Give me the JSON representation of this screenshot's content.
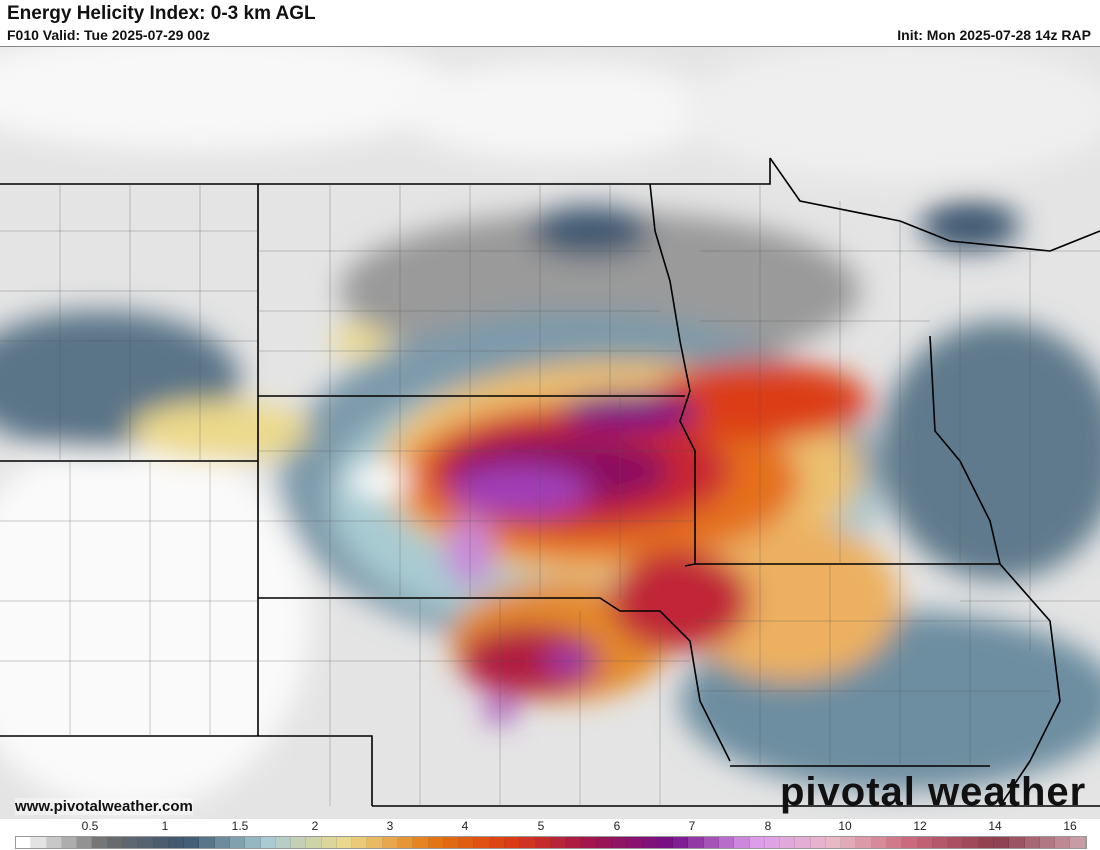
{
  "header": {
    "title": "Energy Helicity Index: 0-3 km AGL",
    "valid": "F010 Valid: Tue 2025-07-29 00z",
    "init": "Init: Mon 2025-07-28 14z RAP"
  },
  "watermark": {
    "url": "www.pivotalweather.com",
    "logo": "pivotal weather"
  },
  "colorbar": {
    "tick_labels": [
      "0.5",
      "1",
      "1.5",
      "2",
      "3",
      "4",
      "5",
      "6",
      "7",
      "8",
      "10",
      "12",
      "14",
      "16"
    ],
    "anchor_colors": [
      "#ffffff",
      "#6e6e6e",
      "#3c5670",
      "#a8cbd2",
      "#ecd98a",
      "#e47a14",
      "#dc3c14",
      "#a01450",
      "#741088",
      "#dc9cec",
      "#e8b8c4",
      "#c86478",
      "#8c3c4c",
      "#c89ca4"
    ]
  }
}
